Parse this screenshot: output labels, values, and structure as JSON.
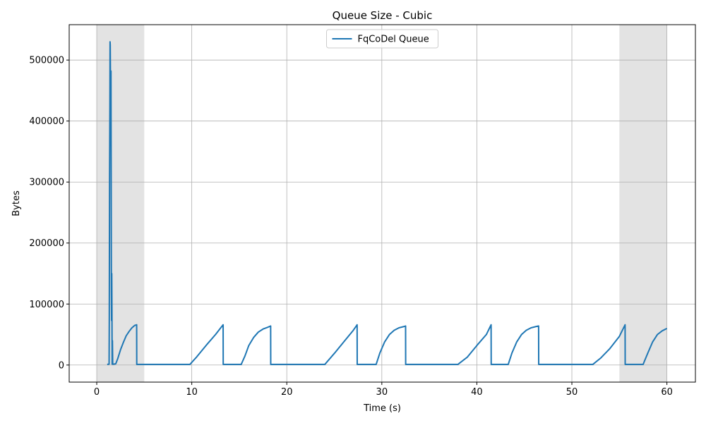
{
  "chart_data": {
    "type": "line",
    "title": "Queue Size - Cubic",
    "xlabel": "Time (s)",
    "ylabel": "Bytes",
    "xlim": [
      -2.9,
      63.0
    ],
    "ylim": [
      -28000,
      558000
    ],
    "xticks": [
      0,
      10,
      20,
      30,
      40,
      50,
      60
    ],
    "xtick_labels": [
      "0",
      "10",
      "20",
      "30",
      "40",
      "50",
      "60"
    ],
    "yticks": [
      0,
      100000,
      200000,
      300000,
      400000,
      500000
    ],
    "ytick_labels": [
      "0",
      "100000",
      "200000",
      "300000",
      "400000",
      "500000"
    ],
    "grid": true,
    "legend_position": "upper center",
    "shaded_regions": [
      {
        "x": [
          0,
          5
        ],
        "color": "#e3e3e3"
      },
      {
        "x": [
          55,
          60
        ],
        "color": "#e3e3e3"
      }
    ],
    "series": [
      {
        "name": "FqCoDel Queue",
        "color": "#1f77b4",
        "x": [
          1.1,
          1.3,
          1.32,
          1.35,
          1.38,
          1.4,
          1.42,
          1.44,
          1.46,
          1.48,
          1.5,
          1.52,
          1.54,
          1.56,
          1.58,
          1.6,
          1.62,
          1.65,
          1.68,
          1.7,
          1.72,
          1.75,
          1.8,
          2.0,
          2.2,
          2.5,
          2.8,
          3.1,
          3.4,
          3.7,
          4.0,
          4.2,
          4.21,
          5.0,
          7.0,
          9.8,
          10.5,
          11.5,
          12.5,
          13.3,
          13.31,
          14.0,
          15.2,
          15.6,
          16.0,
          16.5,
          17.0,
          17.5,
          18.0,
          18.3,
          18.31,
          20.0,
          22.0,
          24.0,
          25.0,
          26.0,
          27.0,
          27.4,
          27.41,
          28.5,
          29.4,
          29.8,
          30.3,
          30.8,
          31.3,
          31.8,
          32.3,
          32.5,
          32.51,
          35.0,
          38.0,
          39.0,
          40.0,
          41.0,
          41.5,
          41.51,
          42.5,
          43.3,
          43.7,
          44.2,
          44.7,
          45.2,
          45.7,
          46.2,
          46.5,
          46.51,
          49.0,
          52.2,
          53.0,
          54.0,
          55.0,
          55.6,
          55.61,
          56.5,
          57.5,
          57.6,
          58.0,
          58.5,
          59.0,
          59.5,
          60.0
        ],
        "y": [
          1000,
          1500,
          80000,
          310000,
          420000,
          530000,
          525000,
          480000,
          360000,
          480000,
          482000,
          300000,
          120000,
          73000,
          150000,
          90000,
          1500,
          40000,
          1500,
          1500,
          1500,
          1500,
          1500,
          2000,
          10000,
          25000,
          37000,
          48000,
          55000,
          61000,
          65000,
          66000,
          1000,
          1000,
          1000,
          1000,
          13000,
          32000,
          50000,
          66000,
          1000,
          1000,
          1000,
          15000,
          32000,
          45000,
          54000,
          59000,
          62000,
          64000,
          1000,
          1000,
          1000,
          1000,
          19000,
          38000,
          57000,
          66000,
          1000,
          1000,
          1000,
          20000,
          38000,
          50000,
          57000,
          61000,
          63000,
          64000,
          1000,
          1000,
          1000,
          13000,
          32000,
          50000,
          66000,
          1000,
          1000,
          1000,
          20000,
          38000,
          50000,
          57000,
          61000,
          63000,
          64000,
          1000,
          1000,
          1000,
          11000,
          27000,
          47000,
          66000,
          1000,
          1000,
          1000,
          5000,
          20000,
          38000,
          50000,
          56000,
          60000
        ]
      }
    ]
  }
}
